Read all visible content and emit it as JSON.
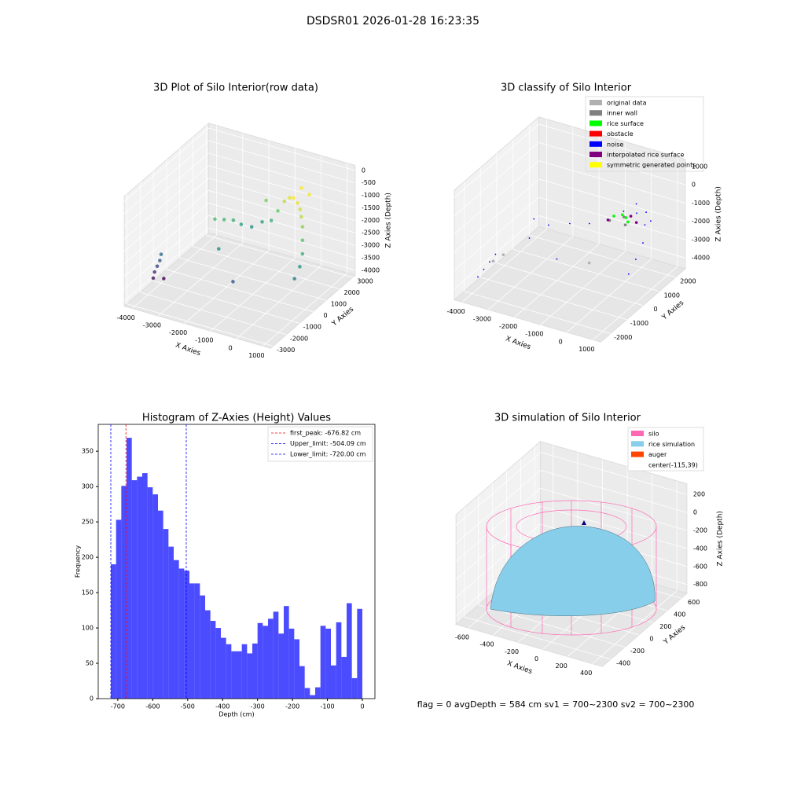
{
  "title": "DSDSR01 2026-01-28 16:23:35",
  "status": "flag = 0     avgDepth = 584 cm  sv1 = 700~2300  sv2 = 700~2300",
  "chart_data": [
    {
      "type": "scatter3d",
      "title": "3D Plot of Silo Interior(row data)",
      "xlabel": "X Axies",
      "ylabel": "Y Axies",
      "zlabel": "Z Axies (Depth)",
      "colormap": "viridis",
      "xlim": [
        -4300,
        1300
      ],
      "ylim": [
        -3200,
        3200
      ],
      "zlim": [
        -4200,
        200
      ],
      "xticks": [
        -4000,
        -3000,
        -2000,
        -1000,
        0,
        1000
      ],
      "yticks": [
        -3000,
        -2000,
        -1000,
        0,
        1000,
        2000,
        3000
      ],
      "zticks": [
        0,
        -500,
        -1000,
        -1500,
        -2000,
        -2500,
        -3000,
        -3500,
        -4000
      ],
      "x": [
        -3900,
        -3900,
        -3850,
        -3800,
        -3800,
        -3750,
        -2600,
        -2400,
        -2200,
        -2000,
        -1700,
        -1400,
        -1100,
        -900,
        -700,
        -500,
        -300,
        -100,
        100,
        300,
        500,
        700,
        900,
        1000,
        1000,
        -2000,
        -1000,
        -1500,
        -400,
        0
      ],
      "y": [
        -1800,
        -1700,
        -1600,
        -1500,
        -1400,
        -1300,
        300,
        600,
        900,
        1100,
        1300,
        1500,
        1600,
        1700,
        1800,
        1800,
        1700,
        1600,
        1400,
        1100,
        800,
        400,
        0,
        -400,
        -800,
        -600,
        -1500,
        2000,
        2500,
        2300
      ],
      "z": [
        -3600,
        -3400,
        -3200,
        -3000,
        -2800,
        -3800,
        -1800,
        -1900,
        -2000,
        -2200,
        -2300,
        -2100,
        -2000,
        -1600,
        -1200,
        -1000,
        -900,
        -1000,
        -1100,
        -1200,
        -1400,
        -1700,
        -2000,
        -2300,
        -2600,
        -2400,
        -3000,
        -1500,
        -900,
        -950
      ]
    },
    {
      "type": "scatter3d",
      "title": "3D classify of Silo Interior",
      "xlabel": "X Axies",
      "ylabel": "Y Axies",
      "zlabel": "Z Axies (Depth)",
      "xlim": [
        -4300,
        1300
      ],
      "ylim": [
        -2600,
        2600
      ],
      "zlim": [
        -4600,
        1400
      ],
      "xticks": [
        -4000,
        -3000,
        -2000,
        -1000,
        0,
        1000
      ],
      "yticks": [
        -2000,
        -1000,
        0,
        1000,
        2000
      ],
      "zticks": [
        1000,
        0,
        -1000,
        -2000,
        -3000,
        -4000
      ],
      "series": [
        {
          "name": "original data",
          "color": "#b0b0b0",
          "x": [
            -3500,
            -3300,
            -200
          ],
          "y": [
            -1500,
            -1200,
            -900
          ],
          "z": [
            -3000,
            -2800,
            -2200
          ]
        },
        {
          "name": "inner wall",
          "color": "#808080",
          "x": [
            -600,
            -300,
            0
          ],
          "y": [
            1000,
            1400,
            1000
          ],
          "z": [
            -1500,
            -1500,
            -1500
          ]
        },
        {
          "name": "rice surface",
          "color": "#00ff00",
          "x": [
            -500,
            -300,
            -100,
            100
          ],
          "y": [
            1100,
            1300,
            1200,
            1000
          ],
          "z": [
            -1300,
            -1300,
            -1300,
            -1300
          ]
        },
        {
          "name": "obstacle",
          "color": "#ff0000",
          "x": [],
          "y": [],
          "z": []
        },
        {
          "name": "noise",
          "color": "#0000ff",
          "x": [
            -3900,
            -3800,
            -3700,
            -3600,
            -2500,
            -2000,
            -1500,
            -1000,
            -500,
            0,
            500,
            800,
            900,
            1000,
            -1500,
            -2800,
            -3000,
            -200,
            300,
            600
          ],
          "y": [
            -1800,
            -1600,
            -1400,
            -1200,
            300,
            800,
            1200,
            1500,
            1700,
            1700,
            1400,
            800,
            200,
            -400,
            -800,
            -400,
            200,
            2000,
            1800,
            1600
          ],
          "z": [
            -3800,
            -3500,
            -3200,
            -2900,
            -2000,
            -2100,
            -2200,
            -2000,
            -1500,
            -1400,
            -1600,
            -2000,
            -2400,
            -2700,
            -2600,
            -2300,
            -1800,
            -1200,
            -1300,
            -1500
          ]
        },
        {
          "name": "interpolated rice surface",
          "color": "#800080",
          "x": [
            -600,
            -100,
            300
          ],
          "y": [
            900,
            1500,
            1200
          ],
          "z": [
            -1400,
            -1450,
            -1400
          ]
        },
        {
          "name": "symmetric generated points",
          "color": "#ffff00",
          "x": [],
          "y": [],
          "z": []
        }
      ]
    },
    {
      "type": "histogram",
      "title": "Histogram of Z-Axies (Height) Values",
      "xlabel": "Depth (cm)",
      "ylabel": "Frequency",
      "color": "#0000ff",
      "bins": [
        -720,
        -705,
        -690,
        -675,
        -660,
        -645,
        -630,
        -615,
        -600,
        -585,
        -570,
        -555,
        -540,
        -525,
        -510,
        -495,
        -480,
        -465,
        -450,
        -435,
        -420,
        -405,
        -390,
        -375,
        -360,
        -345,
        -330,
        -315,
        -300,
        -285,
        -270,
        -255,
        -240,
        -225,
        -210,
        -195,
        -180,
        -165,
        -150,
        -135,
        -120,
        -105,
        -90,
        -75,
        -60,
        -45,
        -30,
        -15,
        0
      ],
      "values": [
        190,
        253,
        301,
        369,
        309,
        314,
        319,
        299,
        289,
        266,
        240,
        215,
        196,
        184,
        181,
        163,
        163,
        146,
        125,
        110,
        100,
        86,
        77,
        67,
        67,
        77,
        64,
        78,
        107,
        103,
        113,
        123,
        92,
        131,
        99,
        84,
        46,
        15,
        5,
        16,
        103,
        99,
        47,
        108,
        59,
        135,
        29,
        127
      ],
      "xlim": [
        -756,
        36
      ],
      "ylim": [
        0,
        388
      ],
      "xticks": [
        -700,
        -600,
        -500,
        -400,
        -300,
        -200,
        -100,
        0
      ],
      "yticks": [
        0,
        50,
        100,
        150,
        200,
        250,
        300,
        350
      ],
      "lines": [
        {
          "name": "first_peak: -676.82 cm",
          "value": -676.82,
          "color": "#ff0000"
        },
        {
          "name": "Upper_limit: -504.09 cm",
          "value": -504.09,
          "color": "#0000ff"
        },
        {
          "name": "Lower_limit: -720.00 cm",
          "value": -720.0,
          "color": "#0000ff"
        }
      ],
      "legend": "upper right"
    },
    {
      "type": "surface3d",
      "title": "3D simulation of Silo Interior",
      "xlabel": "X Axies",
      "ylabel": "Y Axies",
      "zlabel": "Z Axies (Depth)",
      "xlim": [
        -700,
        480
      ],
      "ylim": [
        -520,
        680
      ],
      "zlim": [
        -900,
        320
      ],
      "xticks": [
        -600,
        -400,
        -200,
        0,
        200,
        400
      ],
      "yticks": [
        -400,
        -200,
        0,
        200,
        400,
        600
      ],
      "zticks": [
        200,
        0,
        -200,
        -400,
        -600,
        -800
      ],
      "legend": [
        {
          "name": "silo",
          "color": "#ff69b4"
        },
        {
          "name": "rice simulation",
          "color": "#87ceeb"
        },
        {
          "name": "auger",
          "color": "#ff4500"
        },
        {
          "name": "center(-115,39)"
        }
      ]
    }
  ]
}
